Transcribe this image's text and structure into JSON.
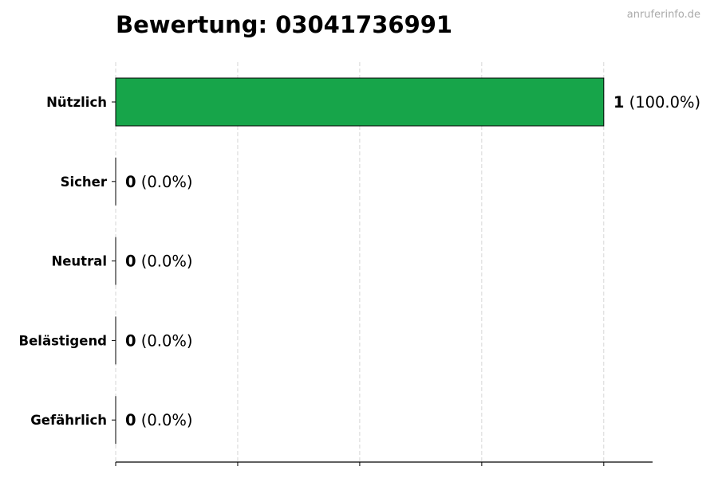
{
  "watermark": "anruferinfo.de",
  "chart_data": {
    "type": "bar",
    "orientation": "horizontal",
    "title": "Bewertung: 03041736991",
    "categories": [
      "Nützlich",
      "Sicher",
      "Neutral",
      "Belästigend",
      "Gefährlich"
    ],
    "values": [
      1,
      0,
      0,
      0,
      0
    ],
    "value_labels": [
      "1",
      "0",
      "0",
      "0",
      "0"
    ],
    "percent_labels": [
      "(100.0%)",
      "(0.0%)",
      "(0.0%)",
      "(0.0%)",
      "(0.0%)"
    ],
    "bar_color": "#17a54a",
    "xlim": [
      0,
      1.1
    ],
    "xticks": [
      0,
      0.25,
      0.5,
      0.75,
      1
    ],
    "xtick_labels_shown": false,
    "grid": "x, dashed",
    "xlabel": "",
    "ylabel": ""
  }
}
